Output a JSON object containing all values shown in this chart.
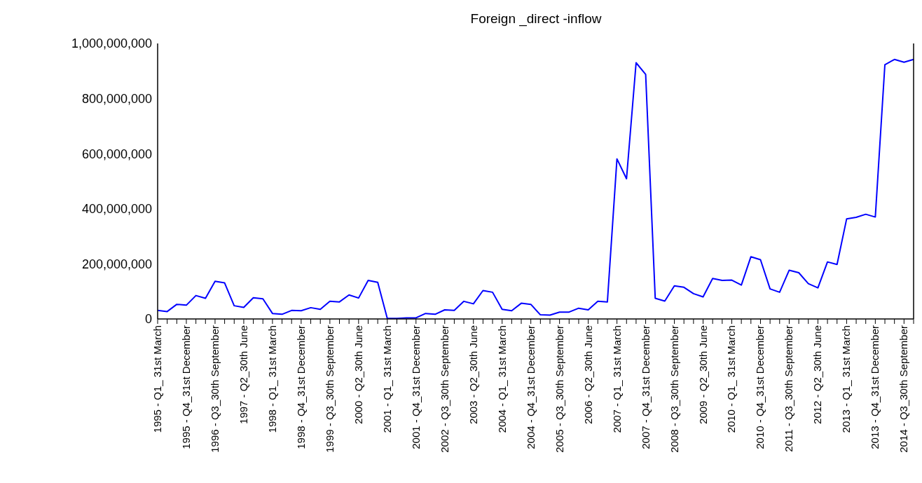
{
  "chart_data": {
    "type": "line",
    "title": "Foreign _direct -inflow",
    "categories": [
      "1995 - Q1_ 31st March",
      null,
      null,
      "1995 - Q4_31st December",
      null,
      null,
      "1996 - Q3_30th September",
      null,
      null,
      "1997 - Q2_30th June",
      null,
      null,
      "1998 - Q1_ 31st March",
      null,
      null,
      "1998 - Q4_31st December",
      null,
      null,
      "1999 - Q3_30th September",
      null,
      null,
      "2000 - Q2_30th June",
      null,
      null,
      "2001 - Q1_ 31st March",
      null,
      null,
      "2001 - Q4_31st December",
      null,
      null,
      "2002 - Q3_30th September",
      null,
      null,
      "2003 - Q2_30th June",
      null,
      null,
      "2004 - Q1_ 31st March",
      null,
      null,
      "2004 - Q4_31st December",
      null,
      null,
      "2005 - Q3_30th September",
      null,
      null,
      "2006 - Q2_30th June",
      null,
      null,
      "2007 - Q1_ 31st March",
      null,
      null,
      "2007 - Q4_31st December",
      null,
      null,
      "2008 - Q3_30th September",
      null,
      null,
      "2009 - Q2_30th June",
      null,
      null,
      "2010 - Q1_ 31st March",
      null,
      null,
      "2010 - Q4_31st December",
      null,
      null,
      "2011 - Q3_30th September",
      null,
      null,
      "2012 - Q2_30th June",
      null,
      null,
      "2013 - Q1_ 31st March",
      null,
      null,
      "2013 - Q4_31st December",
      null,
      null,
      "2014 - Q3_30th September",
      null
    ],
    "series": [
      {
        "color": "#0000ff",
        "values": [
          31000000,
          27000000,
          53000000,
          50000000,
          85000000,
          75000000,
          137000000,
          131000000,
          48000000,
          42000000,
          77000000,
          73000000,
          20000000,
          17000000,
          31000000,
          30000000,
          41000000,
          35000000,
          64000000,
          62000000,
          87000000,
          76000000,
          140000000,
          133000000,
          2000000,
          2000000,
          4000000,
          4000000,
          20000000,
          17000000,
          33000000,
          31000000,
          64000000,
          55000000,
          103000000,
          97000000,
          35000000,
          30000000,
          57000000,
          53000000,
          15000000,
          14000000,
          25000000,
          25000000,
          39000000,
          33000000,
          64000000,
          62000000,
          581000000,
          509000000,
          930000000,
          888000000,
          75000000,
          65000000,
          120000000,
          115000000,
          92000000,
          80000000,
          147000000,
          140000000,
          141000000,
          123000000,
          226000000,
          215000000,
          109000000,
          97000000,
          177000000,
          168000000,
          128000000,
          113000000,
          207000000,
          198000000,
          363000000,
          369000000,
          380000000,
          370000000,
          923000000,
          942000000,
          932000000,
          942000000
        ]
      }
    ],
    "ylim": [
      0,
      1000000000
    ],
    "yticks": [
      {
        "value": 0,
        "label": "0"
      },
      {
        "value": 200000000,
        "label": "200,000,000"
      },
      {
        "value": 400000000,
        "label": "400,000,000"
      },
      {
        "value": 600000000,
        "label": "600,000,000"
      },
      {
        "value": 800000000,
        "label": "800,000,000"
      },
      {
        "value": 1000000000,
        "label": "1,000,000,000"
      }
    ],
    "grid": false,
    "legend": false,
    "marker": "none",
    "line_style": "solid"
  }
}
